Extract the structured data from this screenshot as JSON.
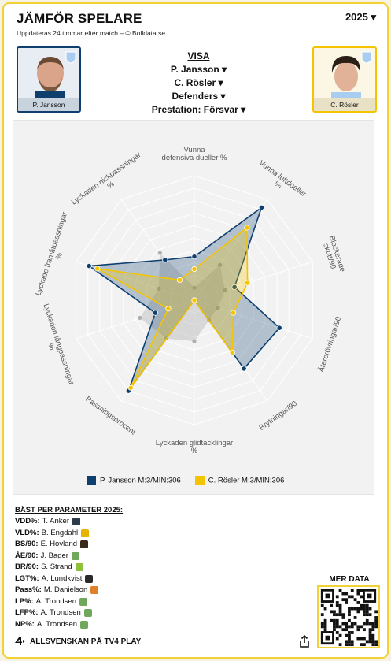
{
  "header": {
    "title": "JÄMFÖR SPELARE",
    "subtitle": "Uppdateras 24 timmar efter match – © Bolldata.se",
    "year": "2025 ▾"
  },
  "player_left": {
    "name": "P. Jansson"
  },
  "player_right": {
    "name": "C. Rösler"
  },
  "selectors": {
    "visa": "VISA",
    "player1": "P. Jansson ▾",
    "player2": "C. Rösler ▾",
    "position": "Defenders ▾",
    "metric": "Prestation: Försvar ▾"
  },
  "chart_data": {
    "type": "radar",
    "axes": [
      "Vunna defensiva dueller %",
      "Vunna luftdueller %",
      "Blockerade skott/90",
      "Återerövringar/90",
      "Brytningar/90",
      "Lyckaden glidtacklingar %",
      "Passningsprocent",
      "Lyckaden långpassningar %",
      "Lyckade framåtpassningar %",
      "Lyckaden nickpassningar %"
    ],
    "rmax": 10,
    "series": [
      {
        "name": "P. Jansson M:3/MIN:306",
        "color": "#0e3f6f",
        "values": [
          3.5,
          9.2,
          3.4,
          7.2,
          6.8,
          0.0,
          9.0,
          3.3,
          8.9,
          4.0
        ]
      },
      {
        "name": "C. Rösler M:3/MIN:306",
        "color": "#f5c400",
        "values": [
          2.5,
          7.2,
          4.5,
          3.3,
          5.2,
          0.0,
          8.7,
          2.2,
          8.2,
          2.0
        ]
      },
      {
        "name": "avg",
        "color": "#b5b5b5",
        "values": [
          1.0,
          3.5,
          2.6,
          2.0,
          2.0,
          3.3,
          3.8,
          4.6,
          3.0,
          4.7
        ]
      }
    ]
  },
  "legend": {
    "p1": "P. Jansson M:3/MIN:306",
    "p2": "C. Rösler M:3/MIN:306"
  },
  "best": {
    "heading": "BÄST PER PARAMETER 2025:",
    "rows": [
      {
        "key": "VDD%:",
        "name": "T. Anker",
        "color": "#2d3c4a"
      },
      {
        "key": "VLD%:",
        "name": "B. Engdahl",
        "color": "#e6b400"
      },
      {
        "key": "BS/90:",
        "name": "E. Hovland",
        "color": "#3a2a1a"
      },
      {
        "key": "ÅE/90:",
        "name": "J. Bager",
        "color": "#6fa85a"
      },
      {
        "key": "BR/90:",
        "name": "S. Strand",
        "color": "#8fc23a"
      },
      {
        "key": "LGT%:",
        "name": "A. Lundkvist",
        "color": "#2a2a2a"
      },
      {
        "key": "Pass%:",
        "name": "M. Danielson",
        "color": "#e0802a"
      },
      {
        "key": "LP%:",
        "name": "A. Trondsen",
        "color": "#6fa85a"
      },
      {
        "key": "LFP%:",
        "name": "A. Trondsen",
        "color": "#6fa85a"
      },
      {
        "key": "NP%:",
        "name": "A. Trondsen",
        "color": "#6fa85a"
      }
    ]
  },
  "footer": {
    "label": "ALLSVENSKAN PÅ TV4 PLAY",
    "mer_data": "MER DATA"
  }
}
